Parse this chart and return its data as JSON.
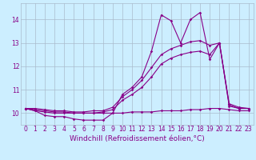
{
  "x": [
    0,
    1,
    2,
    3,
    4,
    5,
    6,
    7,
    8,
    9,
    10,
    11,
    12,
    13,
    14,
    15,
    16,
    17,
    18,
    19,
    20,
    21,
    22,
    23
  ],
  "series1": [
    10.2,
    10.1,
    9.9,
    9.85,
    9.85,
    9.75,
    9.7,
    9.7,
    9.7,
    10.0,
    10.8,
    11.1,
    11.55,
    12.65,
    14.2,
    13.95,
    13.0,
    14.0,
    14.3,
    12.3,
    13.0,
    10.3,
    10.2,
    10.2
  ],
  "series2": [
    10.2,
    10.1,
    10.05,
    10.0,
    10.0,
    10.0,
    10.0,
    10.0,
    10.0,
    10.0,
    10.0,
    10.05,
    10.05,
    10.05,
    10.1,
    10.1,
    10.1,
    10.15,
    10.15,
    10.2,
    10.2,
    10.15,
    10.1,
    10.1
  ],
  "series3": [
    10.2,
    10.15,
    10.1,
    10.05,
    10.05,
    10.0,
    10.0,
    10.0,
    10.05,
    10.15,
    10.55,
    10.8,
    11.1,
    11.55,
    12.1,
    12.35,
    12.5,
    12.6,
    12.65,
    12.5,
    13.0,
    10.35,
    10.2,
    10.2
  ],
  "series4": [
    10.2,
    10.2,
    10.15,
    10.1,
    10.1,
    10.05,
    10.05,
    10.1,
    10.1,
    10.25,
    10.7,
    11.0,
    11.4,
    11.95,
    12.5,
    12.75,
    12.9,
    13.05,
    13.1,
    12.9,
    13.0,
    10.4,
    10.25,
    10.2
  ],
  "xlim": [
    -0.5,
    23.5
  ],
  "ylim": [
    9.5,
    14.7
  ],
  "yticks": [
    10,
    11,
    12,
    13,
    14
  ],
  "xticks": [
    0,
    1,
    2,
    3,
    4,
    5,
    6,
    7,
    8,
    9,
    10,
    11,
    12,
    13,
    14,
    15,
    16,
    17,
    18,
    19,
    20,
    21,
    22,
    23
  ],
  "xlabel": "Windchill (Refroidissement éolien,°C)",
  "line_color": "#880088",
  "bg_color": "#cceeff",
  "grid_color": "#aabbcc",
  "marker": "D",
  "marker_size": 1.8,
  "line_width": 0.8,
  "xlabel_fontsize": 6.5,
  "tick_fontsize": 5.5
}
